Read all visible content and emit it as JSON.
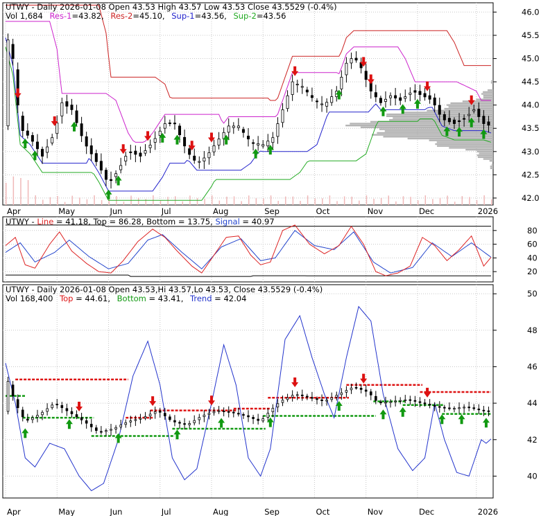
{
  "colors": {
    "background": "#ffffff",
    "frame": "#000000",
    "grid": "#c8c8c8",
    "up_arrow": "#119911",
    "down_arrow": "#dd1111",
    "resistance1": "#cc22cc",
    "resistance2": "#cc2222",
    "support1": "#2222cc",
    "support2": "#22aa22",
    "volume_profile": "#b4b4b4",
    "volume_bars": "#f0b8b8",
    "line": "#dd2222",
    "signal": "#2244cc",
    "bounds": "#000000",
    "top_dashed": "#dd1111",
    "bottom_dashed": "#119911",
    "trend": "#2233cc"
  },
  "chart_data": [
    {
      "type": "candlestick",
      "header": {
        "symbol_line": "UTWY - Daily 2026-01-08 Open 43.53  High 43.57  Low 43.53  Close 43.5529 (-0.4%)",
        "vol": "Vol 1,684",
        "legend": [
          {
            "label": "Res-1",
            "value": "43.82",
            "color": "#cc22cc"
          },
          {
            "label": "Res-2",
            "value": "45.10",
            "color": "#cc2222"
          },
          {
            "label": "Sup-1",
            "value": "43.56",
            "color": "#2222cc"
          },
          {
            "label": "Sup-2",
            "value": "43.56",
            "color": "#22aa22"
          }
        ]
      },
      "ylim": [
        41.85,
        46.2
      ],
      "y_ticks": [
        "42.0",
        "42.5",
        "43.0",
        "43.5",
        "44.0",
        "44.5",
        "45.0",
        "45.5",
        "46.0"
      ],
      "x_labels": [
        "Apr",
        "May",
        "Jun",
        "Jul",
        "Aug",
        "Sep",
        "Oct",
        "Nov",
        "Dec",
        "2026"
      ],
      "close_series": [
        {
          "t": 0,
          "v": 45.6
        },
        {
          "t": 3,
          "v": 45.0
        },
        {
          "t": 6,
          "v": 43.5
        },
        {
          "t": 10,
          "v": 43.3
        },
        {
          "t": 15,
          "v": 42.9
        },
        {
          "t": 20,
          "v": 43.4
        },
        {
          "t": 23,
          "v": 44.05
        },
        {
          "t": 27,
          "v": 43.9
        },
        {
          "t": 32,
          "v": 43.2
        },
        {
          "t": 38,
          "v": 42.7
        },
        {
          "t": 42,
          "v": 42.3
        },
        {
          "t": 46,
          "v": 42.6
        },
        {
          "t": 50,
          "v": 43.0
        },
        {
          "t": 55,
          "v": 42.9
        },
        {
          "t": 60,
          "v": 43.2
        },
        {
          "t": 65,
          "v": 43.6
        },
        {
          "t": 69,
          "v": 43.6
        },
        {
          "t": 74,
          "v": 43.0
        },
        {
          "t": 78,
          "v": 42.75
        },
        {
          "t": 82,
          "v": 42.9
        },
        {
          "t": 86,
          "v": 43.2
        },
        {
          "t": 91,
          "v": 43.55
        },
        {
          "t": 95,
          "v": 43.55
        },
        {
          "t": 100,
          "v": 43.2
        },
        {
          "t": 105,
          "v": 43.15
        },
        {
          "t": 109,
          "v": 43.3
        },
        {
          "t": 113,
          "v": 43.9
        },
        {
          "t": 117,
          "v": 44.5
        },
        {
          "t": 121,
          "v": 44.4
        },
        {
          "t": 126,
          "v": 44.1
        },
        {
          "t": 130,
          "v": 44.0
        },
        {
          "t": 135,
          "v": 44.3
        },
        {
          "t": 139,
          "v": 44.9
        },
        {
          "t": 142,
          "v": 45.05
        },
        {
          "t": 145,
          "v": 44.8
        },
        {
          "t": 149,
          "v": 44.3
        },
        {
          "t": 153,
          "v": 44.05
        },
        {
          "t": 157,
          "v": 44.2
        },
        {
          "t": 161,
          "v": 44.1
        },
        {
          "t": 166,
          "v": 44.3
        },
        {
          "t": 170,
          "v": 44.2
        },
        {
          "t": 174,
          "v": 44.1
        },
        {
          "t": 178,
          "v": 43.7
        },
        {
          "t": 183,
          "v": 43.6
        },
        {
          "t": 187,
          "v": 43.7
        },
        {
          "t": 191,
          "v": 43.9
        },
        {
          "t": 195,
          "v": 43.6
        },
        {
          "t": 198,
          "v": 43.55
        }
      ],
      "up_arrow_days": [
        8,
        12,
        28,
        42,
        46,
        64,
        70,
        90,
        102,
        108,
        136,
        154,
        162,
        168,
        180,
        185,
        190,
        195
      ],
      "down_arrow_days": [
        5,
        20,
        48,
        58,
        76,
        84,
        118,
        146,
        149,
        172,
        190
      ]
    },
    {
      "type": "line",
      "header": "UTWY - Line = 41.18, Top = 86.28, Bottom = 13.75, Signal = 40.97",
      "legend": [
        {
          "label": "Line",
          "value": "41.18",
          "color": "#dd2222"
        },
        {
          "label": "Top",
          "value": "86.28",
          "color": "#000000"
        },
        {
          "label": "Bottom",
          "value": "13.75",
          "color": "#000000"
        },
        {
          "label": "Signal",
          "value": "40.97",
          "color": "#2244cc"
        }
      ],
      "ylim": [
        5,
        100
      ],
      "y_ticks": [
        "20",
        "40",
        "60",
        "80"
      ],
      "line_series": [
        {
          "t": 0,
          "v": 58
        },
        {
          "t": 4,
          "v": 70
        },
        {
          "t": 8,
          "v": 30
        },
        {
          "t": 12,
          "v": 25
        },
        {
          "t": 18,
          "v": 60
        },
        {
          "t": 22,
          "v": 78
        },
        {
          "t": 27,
          "v": 50
        },
        {
          "t": 33,
          "v": 32
        },
        {
          "t": 38,
          "v": 20
        },
        {
          "t": 43,
          "v": 18
        },
        {
          "t": 48,
          "v": 36
        },
        {
          "t": 54,
          "v": 64
        },
        {
          "t": 60,
          "v": 82
        },
        {
          "t": 65,
          "v": 70
        },
        {
          "t": 70,
          "v": 50
        },
        {
          "t": 76,
          "v": 28
        },
        {
          "t": 80,
          "v": 18
        },
        {
          "t": 85,
          "v": 44
        },
        {
          "t": 90,
          "v": 70
        },
        {
          "t": 95,
          "v": 72
        },
        {
          "t": 100,
          "v": 44
        },
        {
          "t": 104,
          "v": 30
        },
        {
          "t": 108,
          "v": 34
        },
        {
          "t": 113,
          "v": 80
        },
        {
          "t": 118,
          "v": 88
        },
        {
          "t": 124,
          "v": 60
        },
        {
          "t": 130,
          "v": 46
        },
        {
          "t": 136,
          "v": 58
        },
        {
          "t": 141,
          "v": 86
        },
        {
          "t": 146,
          "v": 60
        },
        {
          "t": 151,
          "v": 20
        },
        {
          "t": 155,
          "v": 14
        },
        {
          "t": 160,
          "v": 18
        },
        {
          "t": 165,
          "v": 28
        },
        {
          "t": 170,
          "v": 70
        },
        {
          "t": 175,
          "v": 58
        },
        {
          "t": 180,
          "v": 36
        },
        {
          "t": 185,
          "v": 52
        },
        {
          "t": 190,
          "v": 72
        },
        {
          "t": 195,
          "v": 28
        },
        {
          "t": 198,
          "v": 41
        }
      ],
      "signal_series": [
        {
          "t": 0,
          "v": 48
        },
        {
          "t": 6,
          "v": 62
        },
        {
          "t": 12,
          "v": 34
        },
        {
          "t": 20,
          "v": 48
        },
        {
          "t": 26,
          "v": 66
        },
        {
          "t": 34,
          "v": 42
        },
        {
          "t": 42,
          "v": 24
        },
        {
          "t": 50,
          "v": 32
        },
        {
          "t": 58,
          "v": 66
        },
        {
          "t": 64,
          "v": 74
        },
        {
          "t": 72,
          "v": 48
        },
        {
          "t": 80,
          "v": 24
        },
        {
          "t": 88,
          "v": 56
        },
        {
          "t": 96,
          "v": 68
        },
        {
          "t": 104,
          "v": 36
        },
        {
          "t": 110,
          "v": 40
        },
        {
          "t": 118,
          "v": 80
        },
        {
          "t": 126,
          "v": 58
        },
        {
          "t": 134,
          "v": 52
        },
        {
          "t": 142,
          "v": 78
        },
        {
          "t": 150,
          "v": 34
        },
        {
          "t": 157,
          "v": 18
        },
        {
          "t": 166,
          "v": 26
        },
        {
          "t": 174,
          "v": 62
        },
        {
          "t": 182,
          "v": 42
        },
        {
          "t": 190,
          "v": 62
        },
        {
          "t": 198,
          "v": 41
        }
      ],
      "top_series": [
        {
          "t": 0,
          "v": 88
        },
        {
          "t": 40,
          "v": 88
        },
        {
          "t": 41,
          "v": 86
        },
        {
          "t": 118,
          "v": 86
        },
        {
          "t": 119,
          "v": 86.28
        },
        {
          "t": 198,
          "v": 86.28
        }
      ],
      "bottom_series": [
        {
          "t": 0,
          "v": 15
        },
        {
          "t": 50,
          "v": 15
        },
        {
          "t": 51,
          "v": 13
        },
        {
          "t": 100,
          "v": 13
        },
        {
          "t": 101,
          "v": 14
        },
        {
          "t": 198,
          "v": 13.75
        }
      ]
    },
    {
      "type": "line",
      "header": {
        "symbol_line": "UTWY - Daily 2026-01-08 Open 43.53,Hi 43.57,Lo 43.53, Close 43.5529 (-0.4%)",
        "vol": "Vol 168,400",
        "legend": [
          {
            "label": "Top",
            "value": "44.61",
            "color": "#dd1111"
          },
          {
            "label": "Bottom",
            "value": "43.41",
            "color": "#119911"
          },
          {
            "label": "Trend",
            "value": "42.04",
            "color": "#2233cc"
          }
        ]
      },
      "ylim": [
        38.8,
        50.5
      ],
      "y_ticks": [
        "40",
        "42",
        "44",
        "46",
        "48",
        "50"
      ],
      "x_labels": [
        "Apr",
        "May",
        "Jun",
        "Jul",
        "Aug",
        "Sep",
        "Oct",
        "Nov",
        "Dec",
        "2026"
      ],
      "trend_series": [
        {
          "t": 0,
          "v": 46.2
        },
        {
          "t": 4,
          "v": 44.0
        },
        {
          "t": 8,
          "v": 41.0
        },
        {
          "t": 12,
          "v": 40.5
        },
        {
          "t": 18,
          "v": 41.8
        },
        {
          "t": 24,
          "v": 41.5
        },
        {
          "t": 30,
          "v": 40.0
        },
        {
          "t": 35,
          "v": 39.2
        },
        {
          "t": 40,
          "v": 39.6
        },
        {
          "t": 46,
          "v": 42.0
        },
        {
          "t": 52,
          "v": 45.5
        },
        {
          "t": 58,
          "v": 47.4
        },
        {
          "t": 63,
          "v": 45.0
        },
        {
          "t": 68,
          "v": 41.0
        },
        {
          "t": 73,
          "v": 39.8
        },
        {
          "t": 78,
          "v": 40.4
        },
        {
          "t": 84,
          "v": 44.0
        },
        {
          "t": 89,
          "v": 47.2
        },
        {
          "t": 94,
          "v": 45.0
        },
        {
          "t": 99,
          "v": 41.0
        },
        {
          "t": 104,
          "v": 40.0
        },
        {
          "t": 108,
          "v": 41.5
        },
        {
          "t": 114,
          "v": 47.5
        },
        {
          "t": 120,
          "v": 48.8
        },
        {
          "t": 125,
          "v": 46.5
        },
        {
          "t": 130,
          "v": 44.5
        },
        {
          "t": 134,
          "v": 43.2
        },
        {
          "t": 139,
          "v": 46.5
        },
        {
          "t": 144,
          "v": 49.3
        },
        {
          "t": 149,
          "v": 48.5
        },
        {
          "t": 154,
          "v": 44.5
        },
        {
          "t": 160,
          "v": 41.5
        },
        {
          "t": 166,
          "v": 40.3
        },
        {
          "t": 171,
          "v": 41.0
        },
        {
          "t": 175,
          "v": 44.0
        },
        {
          "t": 179,
          "v": 42.0
        },
        {
          "t": 184,
          "v": 40.2
        },
        {
          "t": 189,
          "v": 40.0
        },
        {
          "t": 194,
          "v": 42.0
        },
        {
          "t": 196,
          "v": 41.8
        },
        {
          "t": 198,
          "v": 42.04
        }
      ],
      "top_levels": [
        {
          "from": 4,
          "to": 50,
          "v": 45.3
        },
        {
          "from": 49,
          "to": 60,
          "v": 43.2
        },
        {
          "from": 59,
          "to": 94,
          "v": 43.6
        },
        {
          "from": 93,
          "to": 108,
          "v": 43.7
        },
        {
          "from": 107,
          "to": 140,
          "v": 44.3
        },
        {
          "from": 139,
          "to": 170,
          "v": 45.0
        },
        {
          "from": 169,
          "to": 198,
          "v": 44.61
        }
      ],
      "bottom_levels": [
        {
          "from": 0,
          "to": 8,
          "v": 44.4
        },
        {
          "from": 7,
          "to": 36,
          "v": 43.2
        },
        {
          "from": 35,
          "to": 69,
          "v": 42.2
        },
        {
          "from": 68,
          "to": 106,
          "v": 42.6
        },
        {
          "from": 105,
          "to": 151,
          "v": 43.3
        },
        {
          "from": 150,
          "to": 163,
          "v": 44.1
        },
        {
          "from": 162,
          "to": 179,
          "v": 43.9
        },
        {
          "from": 178,
          "to": 198,
          "v": 43.41
        }
      ],
      "close_series": [
        {
          "t": 0,
          "v": 45.6
        },
        {
          "t": 4,
          "v": 44.0
        },
        {
          "t": 8,
          "v": 43.0
        },
        {
          "t": 14,
          "v": 43.4
        },
        {
          "t": 20,
          "v": 44.0
        },
        {
          "t": 26,
          "v": 43.5
        },
        {
          "t": 32,
          "v": 43.0
        },
        {
          "t": 38,
          "v": 42.4
        },
        {
          "t": 44,
          "v": 42.6
        },
        {
          "t": 50,
          "v": 43.0
        },
        {
          "t": 56,
          "v": 43.2
        },
        {
          "t": 62,
          "v": 43.6
        },
        {
          "t": 68,
          "v": 43.0
        },
        {
          "t": 74,
          "v": 42.8
        },
        {
          "t": 80,
          "v": 43.3
        },
        {
          "t": 86,
          "v": 43.6
        },
        {
          "t": 92,
          "v": 43.5
        },
        {
          "t": 98,
          "v": 43.3
        },
        {
          "t": 104,
          "v": 43.0
        },
        {
          "t": 108,
          "v": 43.6
        },
        {
          "t": 112,
          "v": 44.1
        },
        {
          "t": 118,
          "v": 44.5
        },
        {
          "t": 124,
          "v": 44.3
        },
        {
          "t": 130,
          "v": 44.1
        },
        {
          "t": 136,
          "v": 44.5
        },
        {
          "t": 142,
          "v": 44.9
        },
        {
          "t": 148,
          "v": 44.6
        },
        {
          "t": 152,
          "v": 44.0
        },
        {
          "t": 158,
          "v": 44.1
        },
        {
          "t": 164,
          "v": 44.2
        },
        {
          "t": 170,
          "v": 44.0
        },
        {
          "t": 176,
          "v": 43.8
        },
        {
          "t": 182,
          "v": 43.7
        },
        {
          "t": 188,
          "v": 43.8
        },
        {
          "t": 194,
          "v": 43.6
        },
        {
          "t": 198,
          "v": 43.55
        }
      ],
      "up_arrow_days": [
        8,
        26,
        46,
        70,
        88,
        108,
        136,
        154,
        162,
        178,
        186,
        196
      ],
      "down_arrow_days": [
        30,
        60,
        84,
        118,
        146,
        172
      ]
    }
  ]
}
